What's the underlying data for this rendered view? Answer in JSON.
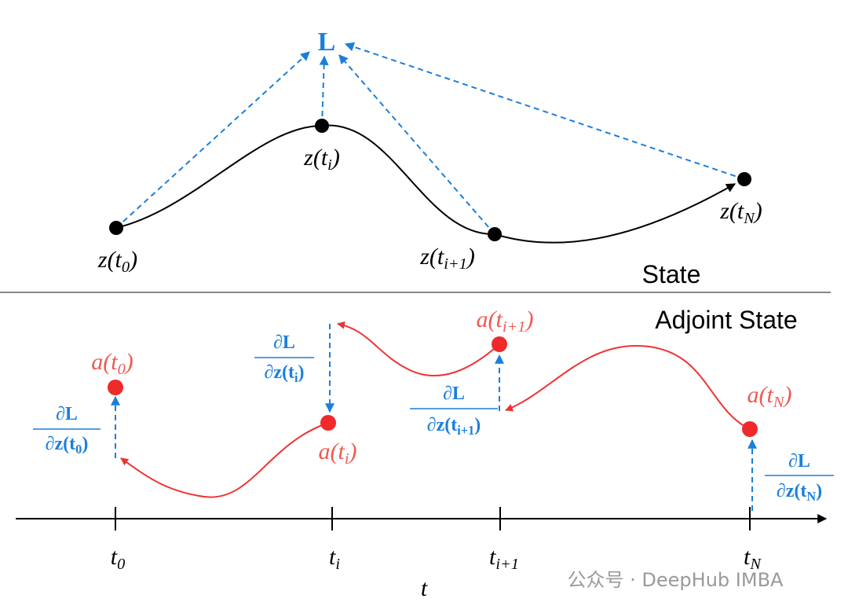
{
  "state": {
    "title": "State",
    "loss": "L",
    "labels": [
      [
        "z(t",
        "0",
        ")"
      ],
      [
        "z(t",
        "i",
        ")"
      ],
      [
        "z(t",
        "i+1",
        ")"
      ],
      [
        "z(t",
        "N",
        ")"
      ]
    ]
  },
  "adjoint": {
    "title": "Adjoint State",
    "labels": [
      [
        "a(t",
        "0",
        ")"
      ],
      [
        "a(t",
        "i",
        ")"
      ],
      [
        "a(t",
        "i+1",
        ")"
      ],
      [
        "a(t",
        "N",
        ")"
      ]
    ],
    "gradients": [
      {
        "numerator": "∂L",
        "denominator": [
          "∂z(t",
          "0",
          ")"
        ]
      },
      {
        "numerator": "∂L",
        "denominator": [
          "∂z(t",
          "i",
          ")"
        ]
      },
      {
        "numerator": "∂L",
        "denominator": [
          "∂z(t",
          "i+1",
          ")"
        ]
      },
      {
        "numerator": "∂L",
        "denominator": [
          "∂z(t",
          "N",
          ")"
        ]
      }
    ]
  },
  "axis": {
    "ticks": [
      [
        "t",
        "0"
      ],
      [
        "t",
        "i"
      ],
      [
        "t",
        "i+1"
      ],
      [
        "t",
        "N"
      ]
    ],
    "label": "t"
  },
  "watermark": "公众号 · DeepHub IMBA"
}
